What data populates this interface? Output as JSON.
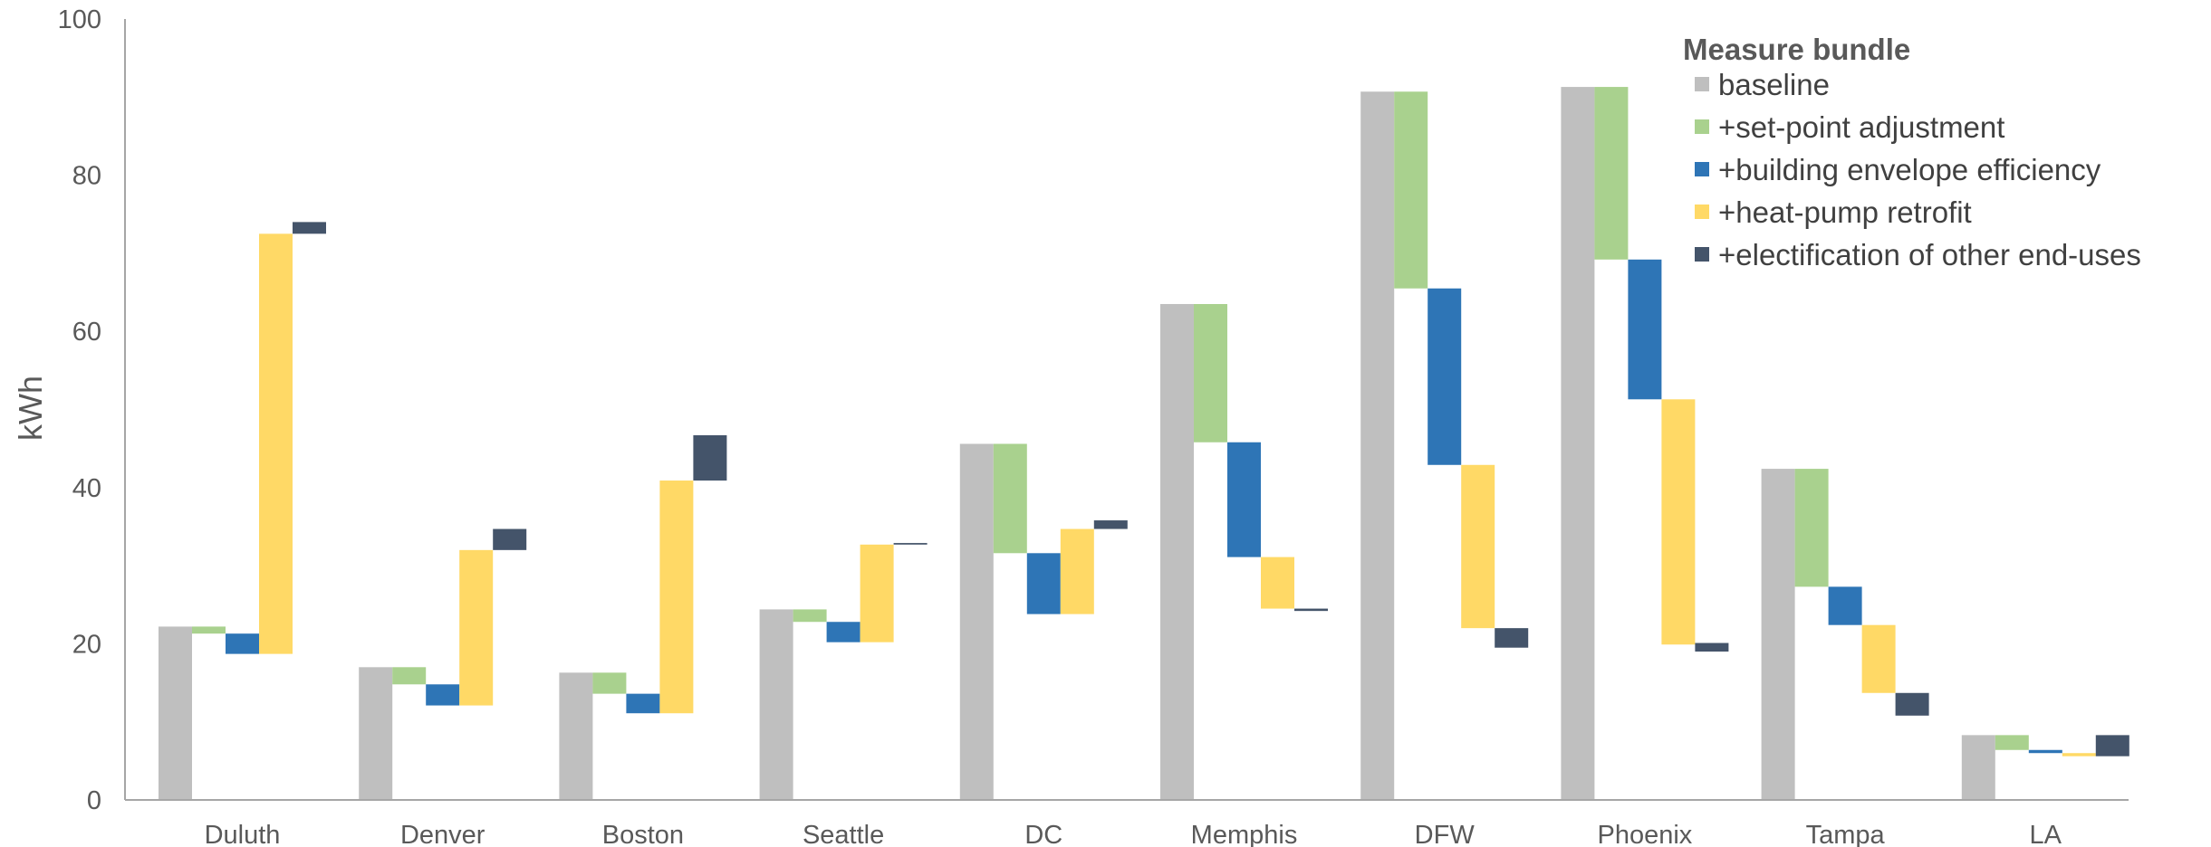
{
  "chart_data": {
    "type": "bar",
    "subtype": "grouped waterfall",
    "title": "",
    "xlabel": "",
    "ylabel": "kWh",
    "ylim": [
      0,
      100
    ],
    "yticks": [
      0,
      20,
      40,
      60,
      80,
      100
    ],
    "grid": false,
    "legend": {
      "title": "Measure bundle",
      "position": "top-right"
    },
    "categories": [
      "Duluth",
      "Denver",
      "Boston",
      "Seattle",
      "DC",
      "Memphis",
      "DFW",
      "Phoenix",
      "Tampa",
      "LA"
    ],
    "series": [
      {
        "name": "baseline",
        "color": "#BFBFBF",
        "ranges": [
          [
            0,
            22.2
          ],
          [
            0,
            17
          ],
          [
            0,
            16.3
          ],
          [
            0,
            24.4
          ],
          [
            0,
            45.6
          ],
          [
            0,
            63.5
          ],
          [
            0,
            90.7
          ],
          [
            0,
            91.3
          ],
          [
            0,
            42.4
          ],
          [
            0,
            8.3
          ]
        ]
      },
      {
        "name": "+set-point adjustment",
        "color": "#A9D18E",
        "ranges": [
          [
            21.3,
            22.2
          ],
          [
            14.8,
            17
          ],
          [
            13.6,
            16.3
          ],
          [
            22.8,
            24.4
          ],
          [
            31.6,
            45.6
          ],
          [
            45.8,
            63.5
          ],
          [
            65.5,
            90.7
          ],
          [
            69.2,
            91.3
          ],
          [
            27.3,
            42.4
          ],
          [
            6.4,
            8.3
          ]
        ]
      },
      {
        "name": "+building envelope efficiency",
        "color": "#2E75B6",
        "ranges": [
          [
            18.7,
            21.3
          ],
          [
            12.1,
            14.8
          ],
          [
            11.1,
            13.6
          ],
          [
            20.2,
            22.8
          ],
          [
            23.8,
            31.6
          ],
          [
            31.1,
            45.8
          ],
          [
            42.9,
            65.5
          ],
          [
            51.3,
            69.2
          ],
          [
            22.4,
            27.3
          ],
          [
            6,
            6.4
          ]
        ]
      },
      {
        "name": "+heat-pump retrofit",
        "color": "#FFD966",
        "ranges": [
          [
            18.7,
            72.5
          ],
          [
            12.1,
            32
          ],
          [
            11.1,
            40.9
          ],
          [
            20.2,
            32.7
          ],
          [
            23.8,
            34.7
          ],
          [
            24.5,
            31.1
          ],
          [
            22,
            42.9
          ],
          [
            19.9,
            51.3
          ],
          [
            13.7,
            22.4
          ],
          [
            5.6,
            6
          ]
        ]
      },
      {
        "name": "+electification of other end-uses",
        "color": "#44546A",
        "ranges": [
          [
            72.5,
            74
          ],
          [
            32,
            34.7
          ],
          [
            40.9,
            46.7
          ],
          [
            32.7,
            32.9
          ],
          [
            34.7,
            35.8
          ],
          [
            24.2,
            24.5
          ],
          [
            19.5,
            22
          ],
          [
            19,
            20.1
          ],
          [
            10.8,
            13.7
          ],
          [
            5.6,
            8.3
          ]
        ]
      }
    ]
  }
}
